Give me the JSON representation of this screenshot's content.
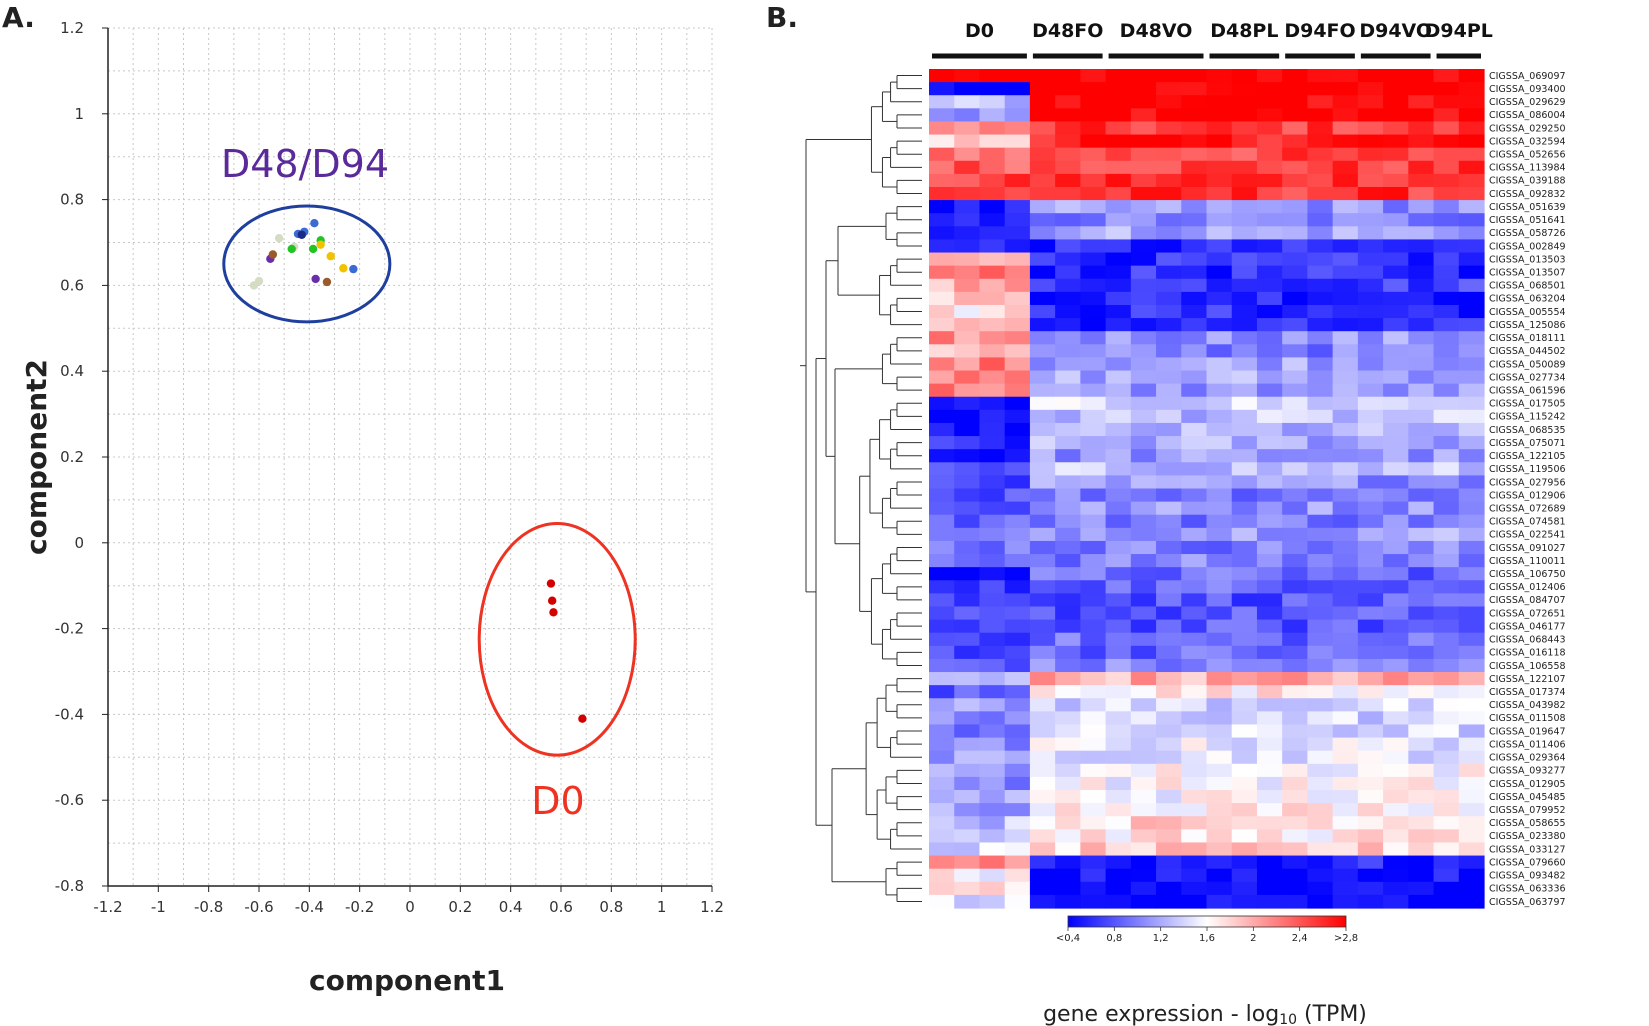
{
  "panelA": {
    "label": "A.",
    "chart_data": {
      "type": "scatter",
      "title": "",
      "xlabel": "component1",
      "ylabel": "component2",
      "xlim": [
        -1.2,
        1.2
      ],
      "ylim": [
        -0.8,
        1.2
      ],
      "xticks": [
        "-1.2",
        "-1",
        "-0.8",
        "-0.6",
        "-0.4",
        "-0.2",
        "0",
        "0.2",
        "0.4",
        "0.6",
        "0.8",
        "1",
        "1.2"
      ],
      "yticks": [
        "-0.8",
        "-0.6",
        "-0.4",
        "-0.2",
        "0",
        "0.2",
        "0.4",
        "0.6",
        "0.8",
        "1",
        "1.2"
      ],
      "grid": true,
      "series": [
        {
          "name": "D0",
          "color": "#d40000",
          "points": [
            [
              0.56,
              -0.095
            ],
            [
              0.565,
              -0.135
            ],
            [
              0.57,
              -0.162
            ],
            [
              0.685,
              -0.41
            ]
          ]
        },
        {
          "name": "pale",
          "color": "#d4dcc4",
          "points": [
            [
              -0.62,
              0.6
            ],
            [
              -0.6,
              0.61
            ],
            [
              -0.52,
              0.71
            ],
            [
              -0.46,
              0.69
            ]
          ]
        },
        {
          "name": "blue",
          "color": "#3d6bd4",
          "points": [
            [
              -0.445,
              0.72
            ],
            [
              -0.42,
              0.725
            ],
            [
              -0.38,
              0.745
            ],
            [
              -0.225,
              0.638
            ]
          ]
        },
        {
          "name": "green",
          "color": "#22c422",
          "points": [
            [
              -0.47,
              0.685
            ],
            [
              -0.385,
              0.685
            ],
            [
              -0.355,
              0.705
            ]
          ]
        },
        {
          "name": "yellow",
          "color": "#f2c200",
          "points": [
            [
              -0.355,
              0.695
            ],
            [
              -0.315,
              0.668
            ],
            [
              -0.265,
              0.64
            ]
          ]
        },
        {
          "name": "purple",
          "color": "#6a2fa8",
          "points": [
            [
              -0.555,
              0.662
            ],
            [
              -0.375,
              0.615
            ]
          ]
        },
        {
          "name": "brown",
          "color": "#9a5a2a",
          "points": [
            [
              -0.545,
              0.672
            ],
            [
              -0.33,
              0.608
            ]
          ]
        },
        {
          "name": "navy",
          "color": "#1a2a8a",
          "points": [
            [
              -0.43,
              0.718
            ]
          ]
        }
      ],
      "annotations": [
        {
          "text": "D48/D94",
          "color": "#5a2a9a",
          "ellipse_center": [
            -0.41,
            0.65
          ],
          "ellipse_radii": [
            0.33,
            0.135
          ],
          "ellipse_color": "#1f3f9f"
        },
        {
          "text": "D0",
          "color": "#ee3322",
          "ellipse_center": [
            0.585,
            -0.225
          ],
          "ellipse_radii": [
            0.31,
            0.27
          ],
          "ellipse_color": "#ee3322"
        }
      ]
    }
  },
  "panelB": {
    "label": "B.",
    "chart_data": {
      "type": "heatmap",
      "groups": [
        {
          "name": "D0",
          "n": 4
        },
        {
          "name": "D48FO",
          "n": 3
        },
        {
          "name": "D48VO",
          "n": 4
        },
        {
          "name": "D48PL",
          "n": 3
        },
        {
          "name": "D94FO",
          "n": 3
        },
        {
          "name": "D94VO",
          "n": 3
        },
        {
          "name": "D94PL",
          "n": 2
        }
      ],
      "genes": [
        "CIGSSA_069097",
        "CIGSSA_093400",
        "CIGSSA_029629",
        "CIGSSA_086004",
        "CIGSSA_029250",
        "CIGSSA_032594",
        "CIGSSA_052656",
        "CIGSSA_113984",
        "CIGSSA_039188",
        "CIGSSA_092832",
        "CIGSSA_051639",
        "CIGSSA_051641",
        "CIGSSA_058726",
        "CIGSSA_002849",
        "CIGSSA_013503",
        "CIGSSA_013507",
        "CIGSSA_068501",
        "CIGSSA_063204",
        "CIGSSA_005554",
        "CIGSSA_125086",
        "CIGSSA_018111",
        "CIGSSA_044502",
        "CIGSSA_050089",
        "CIGSSA_027734",
        "CIGSSA_061596",
        "CIGSSA_017505",
        "CIGSSA_115242",
        "CIGSSA_068535",
        "CIGSSA_075071",
        "CIGSSA_122105",
        "CIGSSA_119506",
        "CIGSSA_027956",
        "CIGSSA_012906",
        "CIGSSA_072689",
        "CIGSSA_074581",
        "CIGSSA_022541",
        "CIGSSA_091027",
        "CIGSSA_110011",
        "CIGSSA_106750",
        "CIGSSA_012406",
        "CIGSSA_084707",
        "CIGSSA_072651",
        "CIGSSA_046177",
        "CIGSSA_068443",
        "CIGSSA_016118",
        "CIGSSA_106558",
        "CIGSSA_122107",
        "CIGSSA_017374",
        "CIGSSA_043982",
        "CIGSSA_011508",
        "CIGSSA_019647",
        "CIGSSA_011406",
        "CIGSSA_029364",
        "CIGSSA_093277",
        "CIGSSA_012905",
        "CIGSSA_045485",
        "CIGSSA_079952",
        "CIGSSA_058655",
        "CIGSSA_023380",
        "CIGSSA_033127",
        "CIGSSA_079660",
        "CIGSSA_093482",
        "CIGSSA_063336",
        "CIGSSA_063797"
      ],
      "profiles": [
        [
          2.85,
          2.85
        ],
        [
          0.4,
          2.85
        ],
        [
          1.3,
          2.85
        ],
        [
          1.1,
          2.85
        ],
        [
          2.1,
          2.5
        ],
        [
          1.8,
          2.7
        ],
        [
          2.3,
          2.45
        ],
        [
          2.4,
          2.5
        ],
        [
          2.45,
          2.6
        ],
        [
          2.5,
          2.55
        ],
        [
          0.45,
          1.1
        ],
        [
          0.45,
          1.0
        ],
        [
          0.6,
          1.2
        ],
        [
          0.55,
          0.55
        ],
        [
          2.1,
          0.6
        ],
        [
          2.2,
          0.6
        ],
        [
          2.0,
          0.7
        ],
        [
          1.9,
          0.6
        ],
        [
          1.7,
          0.6
        ],
        [
          1.8,
          0.55
        ],
        [
          2.1,
          1.1
        ],
        [
          1.9,
          1.0
        ],
        [
          2.2,
          1.2
        ],
        [
          2.1,
          1.2
        ],
        [
          2.2,
          1.1
        ],
        [
          0.4,
          1.4
        ],
        [
          0.4,
          1.3
        ],
        [
          0.4,
          1.2
        ],
        [
          0.6,
          1.2
        ],
        [
          0.5,
          1.1
        ],
        [
          0.7,
          1.3
        ],
        [
          0.8,
          1.1
        ],
        [
          0.8,
          1.0
        ],
        [
          0.8,
          1.1
        ],
        [
          0.9,
          1.0
        ],
        [
          0.9,
          1.2
        ],
        [
          1.0,
          1.0
        ],
        [
          1.0,
          1.0
        ],
        [
          0.5,
          0.9
        ],
        [
          0.6,
          0.9
        ],
        [
          0.7,
          0.8
        ],
        [
          0.7,
          0.8
        ],
        [
          0.6,
          0.8
        ],
        [
          0.8,
          0.9
        ],
        [
          0.8,
          0.9
        ],
        [
          0.9,
          1.0
        ],
        [
          1.4,
          2.0
        ],
        [
          0.8,
          1.7
        ],
        [
          1.1,
          1.4
        ],
        [
          1.0,
          1.4
        ],
        [
          1.0,
          1.4
        ],
        [
          1.0,
          1.5
        ],
        [
          1.1,
          1.5
        ],
        [
          1.1,
          1.6
        ],
        [
          1.1,
          1.6
        ],
        [
          1.2,
          1.6
        ],
        [
          1.2,
          1.7
        ],
        [
          1.3,
          1.8
        ],
        [
          1.4,
          1.7
        ],
        [
          1.4,
          1.8
        ],
        [
          2.2,
          0.55
        ],
        [
          1.6,
          0.45
        ],
        [
          1.7,
          0.4
        ],
        [
          1.5,
          0.4
        ]
      ],
      "colorscale": {
        "min": 0.4,
        "max": 2.8,
        "colors": [
          "#0000ff",
          "#ffffff",
          "#ff0000"
        ]
      },
      "legend": {
        "ticks": [
          "<0,4",
          "0,8",
          "1,2",
          "1,6",
          "2",
          "2,4",
          ">2,8"
        ],
        "title": "gene expression - log",
        "title_sub": "10",
        "title_end": " (TPM)"
      }
    }
  }
}
